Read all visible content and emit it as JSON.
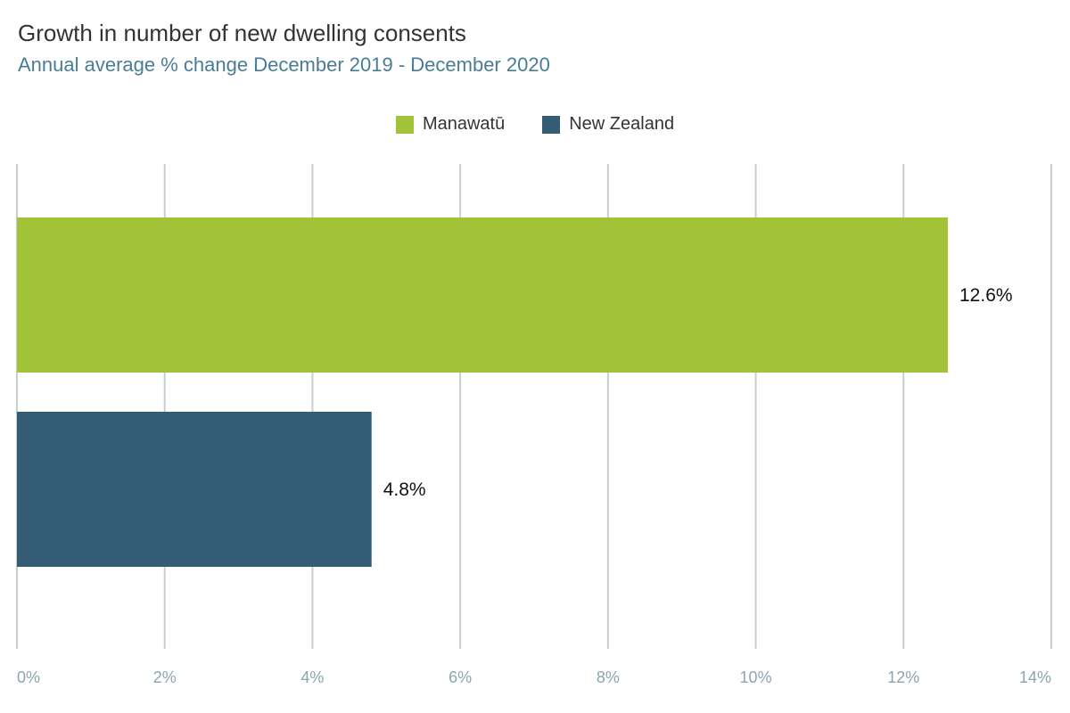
{
  "chart_data": {
    "type": "bar",
    "orientation": "horizontal",
    "title": "Growth in number of new dwelling consents",
    "subtitle": "Annual average % change December 2019 - December 2020",
    "categories": [
      "Manawatū",
      "New Zealand"
    ],
    "series": [
      {
        "name": "Manawatū",
        "value": 12.6,
        "label": "12.6%",
        "color": "#a2c337"
      },
      {
        "name": "New Zealand",
        "value": 4.8,
        "label": "4.8%",
        "color": "#345c74"
      }
    ],
    "xlim": [
      0,
      14
    ],
    "xticks": [
      0,
      2,
      4,
      6,
      8,
      10,
      12,
      14
    ],
    "xtick_labels": [
      "0%",
      "2%",
      "4%",
      "6%",
      "8%",
      "10%",
      "12%",
      "14%"
    ],
    "xlabel": "",
    "ylabel": "",
    "grid": "vertical",
    "legend_position": "top-center"
  }
}
